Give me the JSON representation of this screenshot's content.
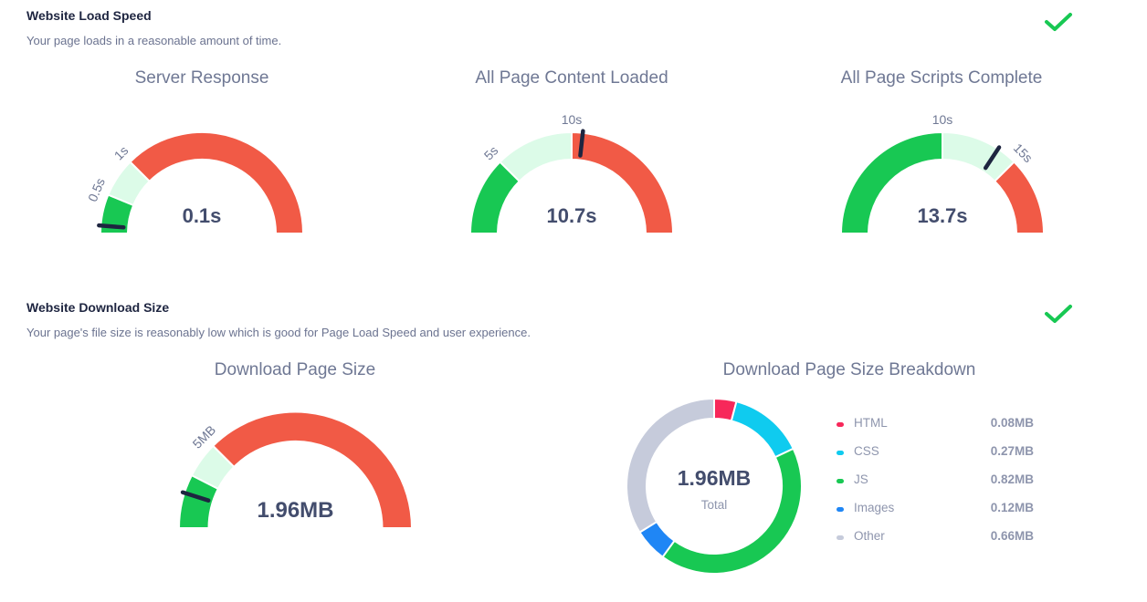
{
  "load_speed": {
    "title": "Website Load Speed",
    "description": "Your page loads in a reasonable amount of time.",
    "status_icon": "check-icon",
    "status_color": "#18c853"
  },
  "download_size": {
    "title": "Website Download Size",
    "description": "Your page's file size is reasonably low which is good for Page Load Speed and user experience.",
    "status_icon": "check-icon",
    "status_color": "#18c853"
  },
  "colors": {
    "good": "#18c853",
    "ok": "#dcfbe8",
    "bad": "#f15a46",
    "needle": "#1e2540",
    "value_text": "#434d6d",
    "tick_text": "#6f7894"
  },
  "chart_data": [
    {
      "type": "gauge",
      "title": "Server Response",
      "value": 0.1,
      "value_label": "0.1s",
      "range": [
        0,
        4
      ],
      "bands": [
        {
          "from": 0,
          "to": 0.5,
          "level": "good"
        },
        {
          "from": 0.5,
          "to": 1,
          "level": "ok"
        },
        {
          "from": 1,
          "to": 4,
          "level": "bad"
        }
      ],
      "ticks": [
        {
          "value": 0.5,
          "label": "0.5s"
        },
        {
          "value": 1,
          "label": "1s"
        }
      ]
    },
    {
      "type": "gauge",
      "title": "All Page Content Loaded",
      "value": 10.7,
      "value_label": "10.7s",
      "range": [
        0,
        20
      ],
      "bands": [
        {
          "from": 0,
          "to": 5,
          "level": "good"
        },
        {
          "from": 5,
          "to": 10,
          "level": "ok"
        },
        {
          "from": 10,
          "to": 20,
          "level": "bad"
        }
      ],
      "ticks": [
        {
          "value": 5,
          "label": "5s"
        },
        {
          "value": 10,
          "label": "10s"
        }
      ]
    },
    {
      "type": "gauge",
      "title": "All Page Scripts Complete",
      "value": 13.7,
      "value_label": "13.7s",
      "range": [
        0,
        20
      ],
      "bands": [
        {
          "from": 0,
          "to": 10,
          "level": "good"
        },
        {
          "from": 10,
          "to": 15,
          "level": "ok"
        },
        {
          "from": 15,
          "to": 20,
          "level": "bad"
        }
      ],
      "ticks": [
        {
          "value": 10,
          "label": "10s"
        },
        {
          "value": 15,
          "label": "15s"
        }
      ]
    },
    {
      "type": "gauge",
      "title": "Download Page Size",
      "value": 1.96,
      "value_label": "1.96MB",
      "range": [
        0,
        20
      ],
      "bands": [
        {
          "from": 0,
          "to": 3,
          "level": "good"
        },
        {
          "from": 3,
          "to": 5,
          "level": "ok"
        },
        {
          "from": 5,
          "to": 20,
          "level": "bad"
        }
      ],
      "ticks": [
        {
          "value": 5,
          "label": "5MB"
        }
      ]
    },
    {
      "type": "pie",
      "donut": true,
      "title": "Download Page Size Breakdown",
      "center_value": "1.96MB",
      "center_label": "Total",
      "categories": [
        "HTML",
        "CSS",
        "JS",
        "Images",
        "Other"
      ],
      "values": [
        0.08,
        0.27,
        0.82,
        0.12,
        0.66
      ],
      "value_labels": [
        "0.08MB",
        "0.27MB",
        "0.82MB",
        "0.12MB",
        "0.66MB"
      ],
      "colors": [
        "#f7285a",
        "#0fcbef",
        "#18c853",
        "#1f86f5",
        "#c6cbdb"
      ]
    }
  ]
}
